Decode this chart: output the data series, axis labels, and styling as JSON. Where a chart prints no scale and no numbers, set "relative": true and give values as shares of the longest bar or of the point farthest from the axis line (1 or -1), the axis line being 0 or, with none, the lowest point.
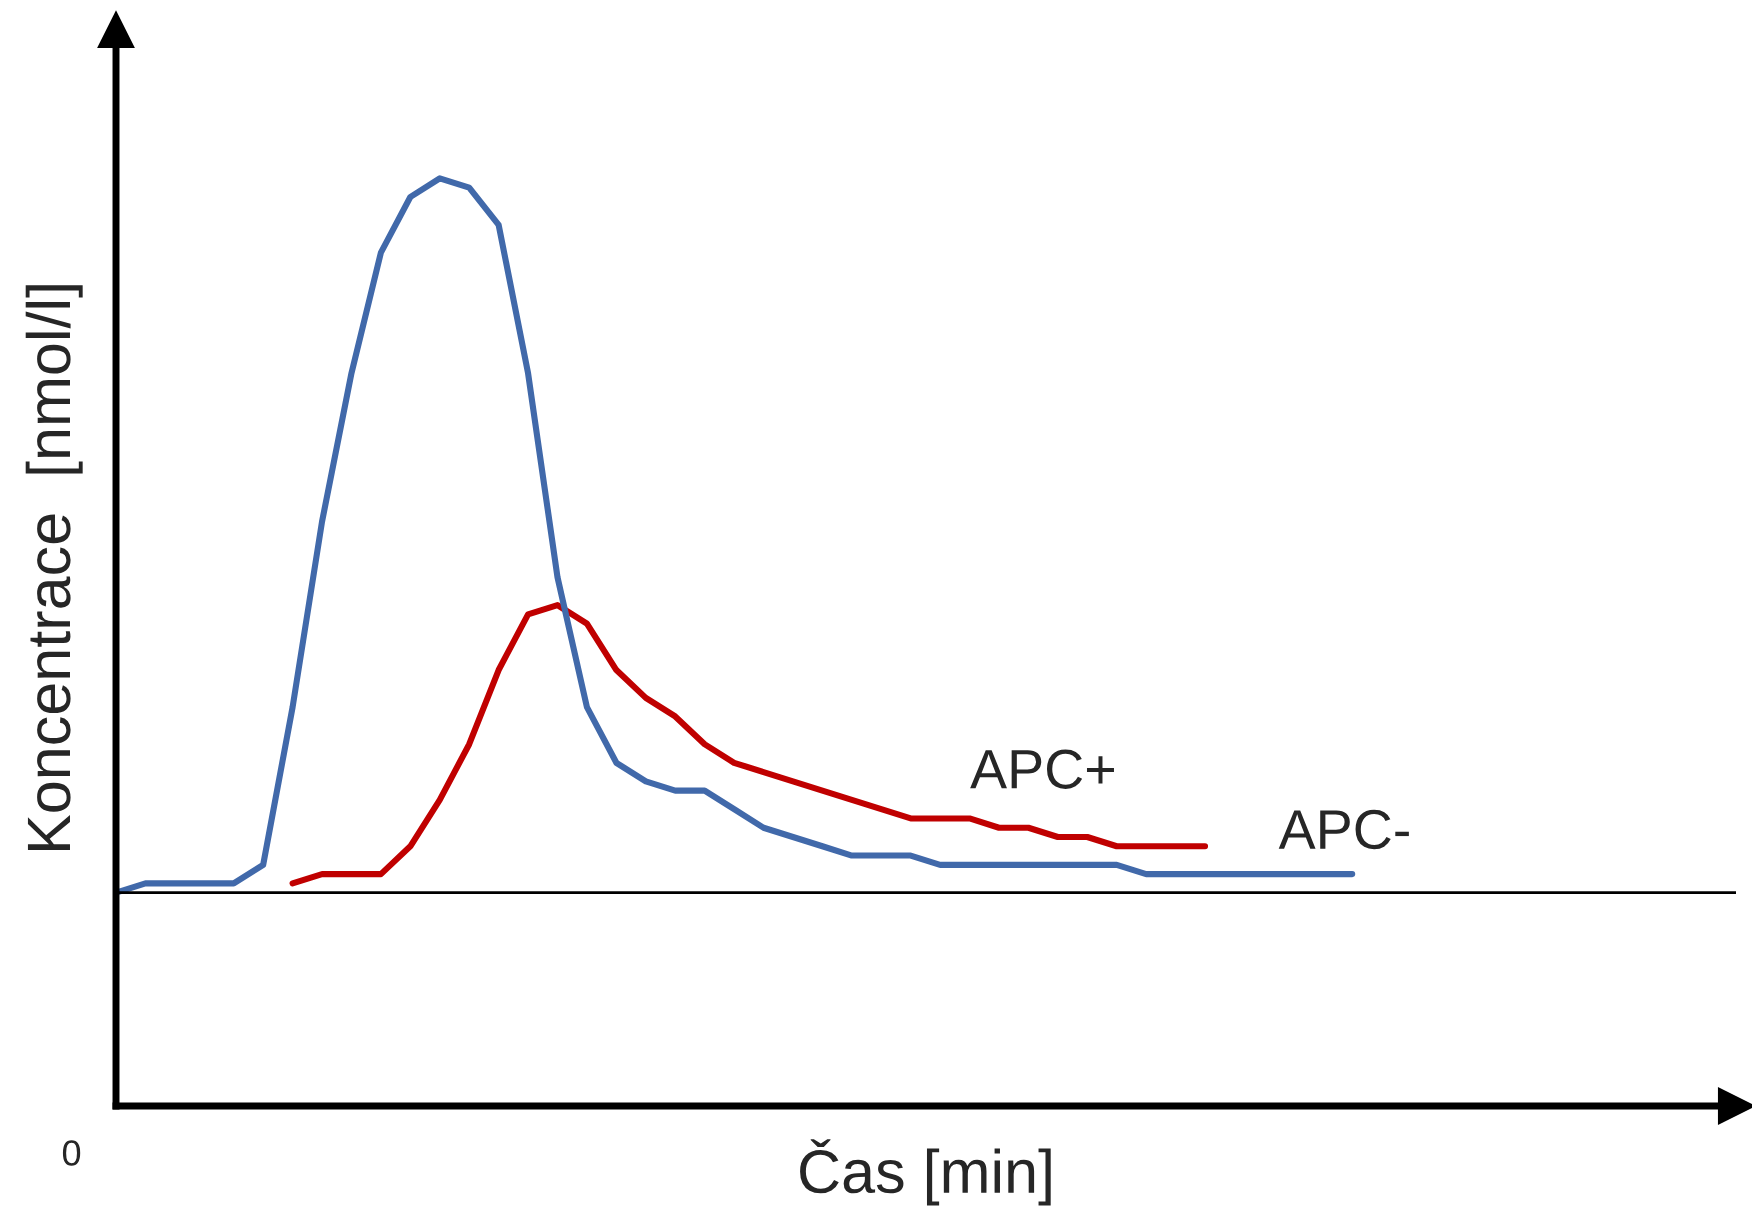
{
  "chart_data": {
    "type": "line",
    "relative": true,
    "xlabel": "Čas [min]",
    "ylabel": "Koncentrace  [nmol/l]",
    "categories": [
      null,
      null,
      null,
      null,
      null,
      null,
      null,
      null,
      null,
      null,
      null,
      null,
      null,
      null,
      null,
      null,
      null,
      null,
      null,
      null,
      null,
      null,
      null,
      null,
      null,
      null,
      null,
      null,
      null,
      null,
      null,
      null,
      null,
      null,
      null,
      null,
      null,
      null,
      null,
      null,
      null,
      null,
      null
    ],
    "series": [
      {
        "name": "APC+",
        "color": "#c00000",
        "values": [
          null,
          null,
          null,
          null,
          null,
          null,
          0.24,
          0.25,
          0.25,
          0.25,
          0.28,
          0.33,
          0.39,
          0.47,
          0.53,
          0.54,
          0.52,
          0.47,
          0.44,
          0.42,
          0.39,
          0.37,
          0.36,
          0.35,
          0.34,
          0.33,
          0.32,
          0.31,
          0.31,
          0.31,
          0.3,
          0.3,
          0.29,
          0.29,
          0.28,
          0.28,
          0.28,
          0.28,
          null,
          null,
          null,
          null,
          null
        ]
      },
      {
        "name": "APC-",
        "color": "#4169aa",
        "values": [
          0.23,
          0.24,
          0.24,
          0.24,
          0.24,
          0.26,
          0.43,
          0.63,
          0.79,
          0.92,
          0.98,
          1.0,
          0.99,
          0.95,
          0.79,
          0.57,
          0.43,
          0.37,
          0.35,
          0.34,
          0.34,
          0.32,
          0.3,
          0.29,
          0.28,
          0.27,
          0.27,
          0.27,
          0.26,
          0.26,
          0.26,
          0.26,
          0.26,
          0.26,
          0.26,
          0.25,
          0.25,
          0.25,
          0.25,
          0.25,
          0.25,
          0.25,
          0.25
        ]
      }
    ],
    "ref_lines": [
      {
        "axis": "y",
        "value": 0.23,
        "color": "#000000"
      }
    ],
    "annotations": [
      "0"
    ],
    "legend": false
  }
}
